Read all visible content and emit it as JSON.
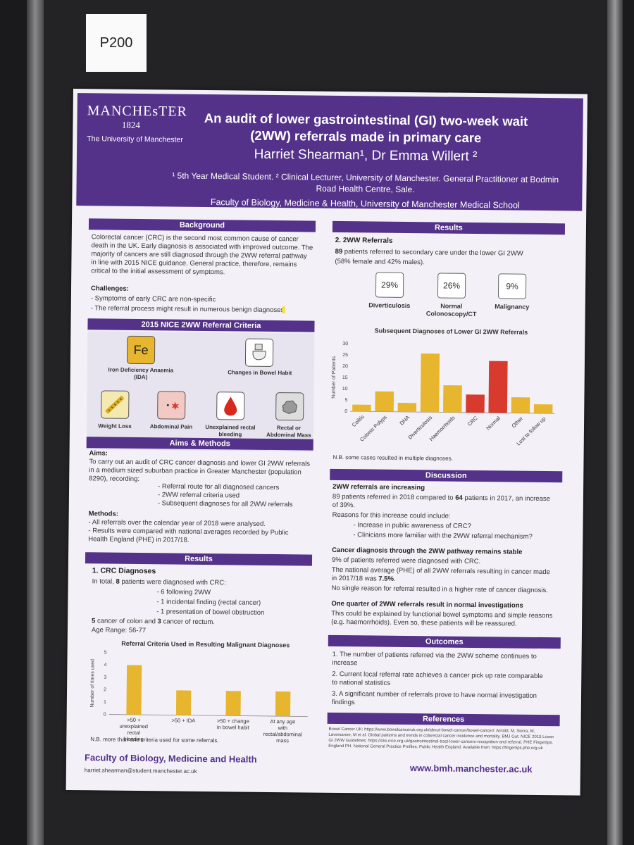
{
  "tag": "P200",
  "header": {
    "logo_name": "MANCHEsTER",
    "logo_year": "1824",
    "logo_uni": "The University of Manchester",
    "title": "An audit of lower gastrointestinal (GI) two-week wait (2WW) referrals made in primary care",
    "authors": "Harriet Shearman¹, Dr Emma Willert ²",
    "affiliation": "¹ 5th Year Medical Student. ² Clinical Lecturer, University of Manchester. General Practitioner at Bodmin Road Health Centre, Sale.",
    "faculty": "Faculty of Biology, Medicine & Health, University of Manchester Medical School"
  },
  "background": {
    "heading": "Background",
    "text": "Colorectal cancer (CRC) is the second most common cause of cancer death in the UK. Early diagnosis is associated with improved outcome. The majority of cancers are still diagnosed through the 2WW referral pathway in line with 2015 NICE guidance. General practice, therefore, remains critical to the initial assessment of symptoms.",
    "challenges_label": "Challenges:",
    "challenges": [
      "- Symptoms of early CRC are non-specific",
      "- The referral process might result in numerous benign diagnoses"
    ]
  },
  "criteria": {
    "heading": "2015 NICE 2WW Referral Criteria",
    "fe": "Fe",
    "items": [
      "Iron Deficiency Anaemia (IDA)",
      "Changes in Bowel Habit",
      "Weight Loss",
      "Abdominal Pain",
      "Unexplained rectal bleeding",
      "Rectal or Abdominal Mass"
    ]
  },
  "aims": {
    "heading": "Aims & Methods",
    "aims_label": "Aims:",
    "aims_text": "To carry out an audit of CRC cancer diagnosis and lower GI 2WW referrals in a medium sized suburban practice in Greater Manchester (population 8290), recording:",
    "aims_list": [
      "- Referral route for all diagnosed cancers",
      "- 2WW referral criteria used",
      "- Subsequent diagnoses for all 2WW referrals"
    ],
    "methods_label": "Methods:",
    "methods": [
      "- All referrals over the calendar year of 2018 were analysed.",
      "- Results were compared with national averages recorded by Public Health England (PHE) in 2017/18."
    ]
  },
  "results_left": {
    "heading": "Results",
    "sub": "1. CRC Diagnoses",
    "intro_pre": "In total, ",
    "intro_num": "8",
    "intro_post": " patients were diagnosed with CRC:",
    "list": [
      "- 6 following 2WW",
      "- 1 incidental finding (rectal cancer)",
      "- 1 presentation of bowel obstruction"
    ],
    "colon_num": "5",
    "colon_mid": " cancer of colon and ",
    "rectum_num": "3",
    "colon_post": " cancer of rectum.",
    "age": "Age Range: 56-77",
    "note": "N.B. more than one criteria used for some referrals."
  },
  "results_right": {
    "heading": "Results",
    "sub": "2. 2WW Referrals",
    "intro_num": "89",
    "intro_post": " patients referred to secondary care under the lower GI 2WW",
    "intro2": "(58% female and 42% males).",
    "boxes": [
      {
        "pct": "29%",
        "label": "Diverticulosis"
      },
      {
        "pct": "26%",
        "label": "Normal Colonoscopy/CT"
      },
      {
        "pct": "9%",
        "label": "Malignancy"
      }
    ],
    "note": "N.B. some cases resulted in multiple diagnoses."
  },
  "discussion": {
    "heading": "Discussion",
    "h1": "2WW referrals are increasing",
    "p1_pre": "89 patients referred in 2018 compared to ",
    "p1_num": "64",
    "p1_post": " patients in 2017, an increase of 39%.",
    "p1b": "Reasons for this increase could include:",
    "reasons": [
      "- Increase in public awareness of CRC?",
      "- Clinicians more familiar with the 2WW referral mechanism?"
    ],
    "h2": "Cancer diagnosis through the 2WW pathway remains stable",
    "p2": "9% of patients referred were diagnosed with CRC.",
    "p2b_pre": "The national average (PHE) of all 2WW referrals resulting in cancer made in 2017/18 was ",
    "p2b_num": "7.5%",
    "p2b_post": ".",
    "p2c": "No single reason for referral resulted in a higher rate of cancer diagnosis.",
    "h3": "One quarter of 2WW referrals result in normal investigations",
    "p3": "This could be explained by functional bowel symptoms and simple reasons (e.g. haemorrhoids). Even so, these patients will be reassured."
  },
  "outcomes": {
    "heading": "Outcomes",
    "items": [
      "1. The number of patients referred via the 2WW scheme continues to increase",
      "2. Current local referral rate achieves a cancer pick up rate comparable to national statistics",
      "3. A significant number of referrals prove to have normal investigation findings"
    ]
  },
  "references": {
    "heading": "References",
    "text": "Bowel Cancer UK: https://www.bowelcanceruk.org.uk/about-bowel-cancer/bowel-cancer/. Arnold, M, Sierra, M, Laversanne, M et al. Global patterns and trends in colorectal cancer incidence and mortality. BMJ Gut. NICE 2015 Lower GI 2WW Guidelines: https://cks.nice.org.uk/gastrointestinal-tract-lower-cancers-recognition-and-referral. PHE Fingertips. England PH. National General Practice Profiles. Public Health England. Available from: https://fingertips.phe.org.uk"
  },
  "footer": {
    "faculty": "Faculty of Biology, Medicine and Health",
    "email": "harriet.shearman@student.manchester.ac.uk",
    "url": "www.bmh.manchester.ac.uk"
  },
  "chart_data": [
    {
      "type": "bar",
      "title": "Subsequent Diagnoses of Lower GI 2WW Referrals",
      "ylabel": "Number of Patients",
      "ylim": [
        0,
        30
      ],
      "yticks": [
        0,
        5,
        10,
        15,
        20,
        25,
        30
      ],
      "categories": [
        "Colitis",
        "Colonic Polyps",
        "DNA",
        "Diverticulosis",
        "Haemorrhoids",
        "CRC",
        "Normal",
        "Other",
        "Lost to follow up"
      ],
      "values": [
        3,
        9,
        4,
        26,
        12,
        8,
        23,
        7,
        4
      ],
      "colors": [
        "#e8b52e",
        "#e8b52e",
        "#e8b52e",
        "#e8b52e",
        "#e8b52e",
        "#d83a2e",
        "#d83a2e",
        "#e8b52e",
        "#e8b52e"
      ]
    },
    {
      "type": "bar",
      "title": "Referral Criteria Used in Resulting Malignant Diagnoses",
      "ylabel": "Number of times used",
      "ylim": [
        0,
        5
      ],
      "yticks": [
        0,
        1,
        2,
        3,
        4,
        5
      ],
      "categories": [
        ">50 + unexplained rectal bleeding",
        ">50 + IDA",
        ">50 + change in bowel habit",
        "At any age with rectal/abdominal mass"
      ],
      "values": [
        4,
        2,
        2,
        2
      ],
      "colors": [
        "#e8b52e",
        "#e8b52e",
        "#e8b52e",
        "#e8b52e"
      ]
    }
  ]
}
